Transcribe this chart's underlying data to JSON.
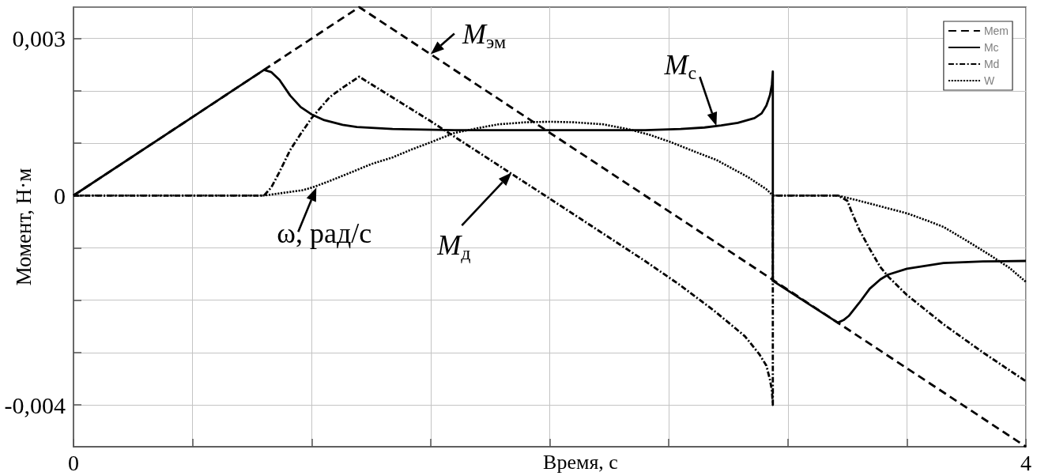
{
  "chart_data": {
    "type": "line",
    "xlabel": "Время, с",
    "ylabel": "Момент, Н·м",
    "xlim": [
      0,
      4
    ],
    "xticks": [
      0,
      {
        "value": 0.5,
        "label": null
      },
      {
        "value": 1,
        "label": null
      },
      {
        "value": 1.5,
        "label": null
      },
      {
        "value": 2,
        "label": null
      },
      {
        "value": 2.5,
        "label": null
      },
      {
        "value": 3,
        "label": null
      },
      {
        "value": 3.5,
        "label": null
      },
      4
    ],
    "ylim": [
      -0.0048,
      0.0036
    ],
    "yticks": [
      {
        "value": -0.004,
        "label": "-0,004"
      },
      {
        "value": -0.003,
        "label": null
      },
      {
        "value": -0.002,
        "label": null
      },
      {
        "value": -0.001,
        "label": null
      },
      0,
      {
        "value": 0.001,
        "label": null
      },
      {
        "value": 0.002,
        "label": null
      },
      {
        "value": 0.003,
        "label": "0,003"
      }
    ],
    "grid": true,
    "legend": "top right",
    "marker": "none",
    "series": [
      {
        "name": "Mem",
        "color": "#000000",
        "line_style": "dashed",
        "x": [
          0,
          1.2,
          4
        ],
        "values": [
          0,
          0.0036,
          -0.0048
        ]
      },
      {
        "name": "Mc",
        "color": "#000000",
        "line_style": "solid",
        "x": [
          0,
          0.8,
          0.83,
          0.865,
          0.91,
          0.954,
          1.0,
          1.053,
          1.13,
          1.19,
          1.34,
          1.6,
          2.0,
          2.4,
          2.55,
          2.65,
          2.72,
          2.79,
          2.86,
          2.89,
          2.91,
          2.925,
          2.933,
          2.937,
          2.937,
          3.21,
          3.234,
          3.256,
          3.3,
          3.344,
          3.389,
          3.422,
          3.5,
          3.654,
          3.82,
          4
        ],
        "values": [
          0,
          0.0024,
          0.00236,
          0.00221,
          0.00191,
          0.00169,
          0.00155,
          0.00144,
          0.00135,
          0.00131,
          0.00127,
          0.00125,
          0.00125,
          0.00125,
          0.00127,
          0.0013,
          0.00134,
          0.00139,
          0.00148,
          0.00157,
          0.00172,
          0.00192,
          0.00212,
          0.00237,
          -0.00163,
          -0.00243,
          -0.00238,
          -0.0023,
          -0.00205,
          -0.00178,
          -0.0016,
          -0.00151,
          -0.0014,
          -0.00129,
          -0.00126,
          -0.00125
        ]
      },
      {
        "name": "Md",
        "color": "#000000",
        "line_style": "dashdot",
        "x": [
          0,
          0.8,
          0.83,
          0.865,
          0.91,
          0.95,
          1.0,
          1.076,
          1.13,
          1.2,
          1.5,
          1.98,
          2.4,
          2.55,
          2.69,
          2.77,
          2.82,
          2.88,
          2.91,
          2.925,
          2.933,
          2.937,
          2.937,
          3.21,
          3.25,
          3.267,
          3.3,
          3.344,
          3.389,
          3.422,
          3.5,
          3.654,
          3.82,
          4
        ],
        "values": [
          0,
          0,
          0.00015,
          0.00045,
          0.00087,
          0.00115,
          0.00148,
          0.00188,
          0.00206,
          0.00227,
          0.00142,
          0,
          -0.00125,
          -0.00172,
          -0.0022,
          -0.0025,
          -0.00269,
          -0.00303,
          -0.00325,
          -0.00352,
          -0.00372,
          -0.004,
          0,
          0,
          -0.0001,
          -0.0003,
          -0.00065,
          -0.00102,
          -0.00137,
          -0.00155,
          -0.0019,
          -0.00246,
          -0.003,
          -0.00355
        ]
      },
      {
        "name": "W",
        "color": "#000000",
        "line_style": "dotted",
        "x": [
          0,
          0.8,
          0.96,
          1.0,
          1.06,
          1.121,
          1.186,
          1.25,
          1.341,
          1.42,
          1.502,
          1.596,
          1.7,
          1.784,
          1.9,
          2.0,
          2.1,
          2.226,
          2.337,
          2.42,
          2.503,
          2.614,
          2.7,
          2.769,
          2.83,
          2.88,
          2.91,
          2.937,
          3.21,
          3.3,
          3.4,
          3.5,
          3.58,
          3.654,
          3.75,
          3.853,
          3.93,
          4
        ],
        "values": [
          0,
          0,
          0.0001,
          0.00015,
          0.00025,
          0.00036,
          0.00048,
          0.0006,
          0.00073,
          0.00088,
          0.00102,
          0.00119,
          0.00129,
          0.00136,
          0.0014,
          0.00141,
          0.0014,
          0.00136,
          0.00126,
          0.00116,
          0.00103,
          0.00083,
          0.00068,
          0.00051,
          0.00036,
          0.00021,
          0.00012,
          0,
          0,
          -0.0001,
          -0.00022,
          -0.00034,
          -0.00047,
          -0.0006,
          -0.00086,
          -0.00115,
          -0.00138,
          -0.00165
        ]
      }
    ],
    "annotations": [
      {
        "text": "M$_{эм}$",
        "x": 1.5,
        "y": 0.0027
      },
      {
        "text": "M$_{с}$",
        "x": 2.7,
        "y": 0.00133
      },
      {
        "text": "ω, рад/с",
        "x": 1.02,
        "y": 0.00015
      },
      {
        "text": "M$_{д}$",
        "x": 1.84,
        "y": 0.00044
      }
    ]
  }
}
